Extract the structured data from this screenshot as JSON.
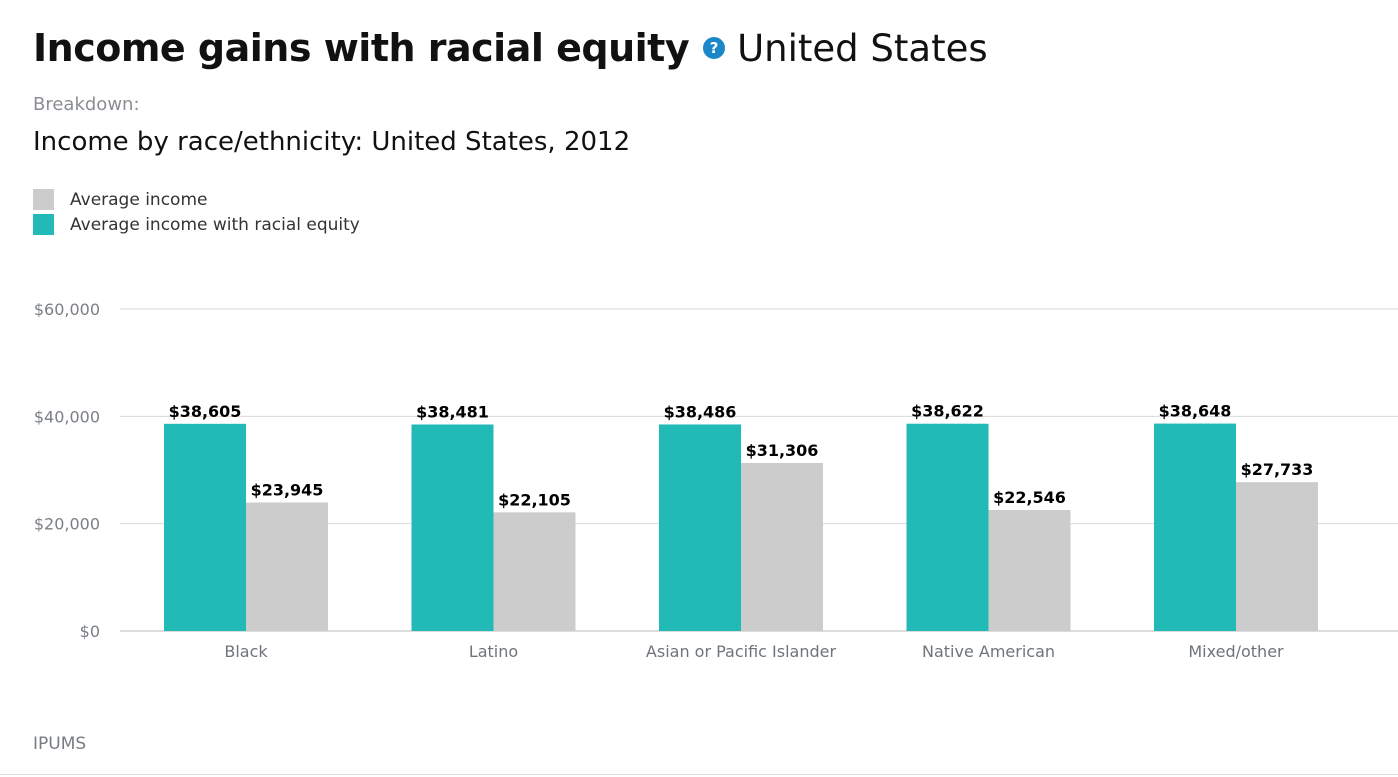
{
  "header": {
    "title": "Income gains with racial equity",
    "help_glyph": "?",
    "location": "United States"
  },
  "breakdown_label": "Breakdown:",
  "subtitle": "Income by race/ethnicity: United States, 2012",
  "legend": [
    {
      "label": "Average income",
      "color": "#cccccc"
    },
    {
      "label": "Average income with racial equity",
      "color": "#22bab6"
    }
  ],
  "source": "IPUMS",
  "chart_data": {
    "type": "bar",
    "categories": [
      "Black",
      "Latino",
      "Asian or Pacific Islander",
      "Native American",
      "Mixed/other"
    ],
    "series": [
      {
        "name": "Average income with racial equity",
        "color": "#22bab6",
        "values": [
          38605,
          38481,
          38486,
          38622,
          38648
        ],
        "labels": [
          "$38,605",
          "$38,481",
          "$38,486",
          "$38,622",
          "$38,648"
        ]
      },
      {
        "name": "Average income",
        "color": "#cccccc",
        "values": [
          23945,
          22105,
          31306,
          22546,
          27733
        ],
        "labels": [
          "$23,945",
          "$22,105",
          "$31,306",
          "$22,546",
          "$27,733"
        ]
      }
    ],
    "yticks": [
      0,
      20000,
      40000,
      60000
    ],
    "ytick_labels": [
      "$0",
      "$20,000",
      "$40,000",
      "$60,000"
    ],
    "ylim": [
      0,
      60000
    ],
    "grid": true
  }
}
